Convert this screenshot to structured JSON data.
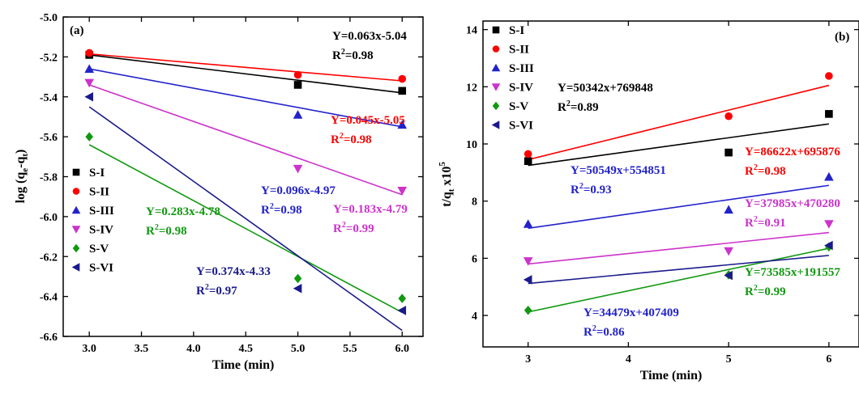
{
  "chart_data": [
    {
      "type": "scatter",
      "panel_label": "(a)",
      "xlabel": "Time (min)",
      "ylabel_main": "log (q",
      "ylabel_sub1": "e",
      "ylabel_mid": "-q",
      "ylabel_sub2": "t",
      "ylabel_end": ")",
      "xlim": [
        2.75,
        6.2
      ],
      "ylim": [
        -6.6,
        -5.0
      ],
      "x_ticks": [
        3.0,
        3.5,
        4.0,
        4.5,
        5.0,
        5.5,
        6.0
      ],
      "x_tick_labels": [
        "3.0",
        "3.5",
        "4.0",
        "4.5",
        "5.0",
        "5.5",
        "6.0"
      ],
      "y_ticks": [
        -6.6,
        -6.4,
        -6.2,
        -6.0,
        -5.8,
        -5.6,
        -5.4,
        -5.2,
        -5.0
      ],
      "y_tick_labels": [
        "-6.6",
        "-6.4",
        "-6.2",
        "-6.0",
        "-5.8",
        "-5.6",
        "-5.4",
        "-5.2",
        "-5.0"
      ],
      "legend": "lower-left",
      "series": [
        {
          "name": "S-I",
          "color": "#000000",
          "marker": "square",
          "x": [
            3,
            5,
            6
          ],
          "y": [
            -5.19,
            -5.34,
            -5.37
          ],
          "fit": [
            -5.19,
            -5.38
          ]
        },
        {
          "name": "S-II",
          "color": "#ff0000",
          "marker": "circle",
          "x": [
            3,
            5,
            6
          ],
          "y": [
            -5.18,
            -5.29,
            -5.31
          ],
          "fit": [
            -5.185,
            -5.32
          ]
        },
        {
          "name": "S-III",
          "color": "#2222cc",
          "marker": "triangle-up",
          "x": [
            3,
            5,
            6
          ],
          "y": [
            -5.26,
            -5.49,
            -5.54
          ],
          "fit": [
            -5.26,
            -5.55
          ]
        },
        {
          "name": "S-IV",
          "color": "#cc33cc",
          "marker": "triangle-down",
          "x": [
            3,
            5,
            6
          ],
          "y": [
            -5.33,
            -5.76,
            -5.87
          ],
          "fit": [
            -5.34,
            -5.89
          ]
        },
        {
          "name": "S-V",
          "color": "#119911",
          "marker": "diamond",
          "x": [
            3,
            5,
            6
          ],
          "y": [
            -5.6,
            -6.31,
            -6.41
          ],
          "fit": [
            -5.64,
            -6.48
          ]
        },
        {
          "name": "S-VI",
          "color": "#1a1a8c",
          "marker": "triangle-left",
          "x": [
            3,
            5,
            6
          ],
          "y": [
            -5.4,
            -6.36,
            -6.47
          ],
          "fit": [
            -5.45,
            -6.57
          ]
        }
      ],
      "annotations": [
        {
          "eq": "Y=0.063x-5.04",
          "r2": "=0.98",
          "color": "#000000"
        },
        {
          "eq": "Y=0.045x-5.05",
          "r2": "=0.98",
          "color": "#ff0000"
        },
        {
          "eq": "Y=0.096x-4.97",
          "r2": "=0.98",
          "color": "#2222cc"
        },
        {
          "eq": "Y=0.183x-4.79",
          "r2": "=0.99",
          "color": "#cc33cc"
        },
        {
          "eq": "Y=0.283x-4.78",
          "r2": "=0.98",
          "color": "#119911"
        },
        {
          "eq": "Y=0.374x-4.33",
          "r2": "=0.97",
          "color": "#1a1a8c"
        }
      ]
    },
    {
      "type": "scatter",
      "panel_label": "(b)",
      "xlabel": "Time (min)",
      "ylabel_main": "t/q",
      "ylabel_sub": "t",
      "ylabel_end": " x10",
      "ylabel_sup": "5",
      "xlim": [
        2.55,
        6.3
      ],
      "ylim": [
        2.9,
        14.3
      ],
      "x_ticks": [
        3,
        4,
        5,
        6
      ],
      "x_tick_labels": [
        "3",
        "4",
        "5",
        "6"
      ],
      "y_ticks": [
        4,
        6,
        8,
        10,
        12,
        14
      ],
      "y_tick_labels": [
        "4",
        "6",
        "8",
        "10",
        "12",
        "14"
      ],
      "legend": "top-left",
      "series": [
        {
          "name": "S-I",
          "color": "#000000",
          "marker": "square",
          "x": [
            3,
            5,
            6
          ],
          "y": [
            9.4,
            9.7,
            11.05
          ],
          "fit": [
            9.25,
            10.7
          ]
        },
        {
          "name": "S-II",
          "color": "#ff0000",
          "marker": "circle",
          "x": [
            3,
            5,
            6
          ],
          "y": [
            9.65,
            10.97,
            12.38
          ],
          "fit": [
            9.45,
            12.05
          ]
        },
        {
          "name": "S-III",
          "color": "#2222cc",
          "marker": "triangle-up",
          "x": [
            3,
            5,
            6
          ],
          "y": [
            7.2,
            7.7,
            8.85
          ],
          "fit": [
            7.05,
            8.55
          ]
        },
        {
          "name": "S-IV",
          "color": "#cc33cc",
          "marker": "triangle-down",
          "x": [
            3,
            5,
            6
          ],
          "y": [
            5.9,
            6.25,
            7.2
          ],
          "fit": [
            5.8,
            6.9
          ]
        },
        {
          "name": "S-V",
          "color": "#119911",
          "marker": "diamond",
          "x": [
            3,
            5,
            6
          ],
          "y": [
            4.18,
            5.42,
            6.4
          ],
          "fit": [
            4.12,
            6.35
          ]
        },
        {
          "name": "S-VI",
          "color": "#1a1a8c",
          "marker": "triangle-left",
          "x": [
            3,
            5,
            6
          ],
          "y": [
            5.25,
            5.4,
            6.45
          ],
          "fit": [
            5.12,
            6.1
          ]
        }
      ],
      "annotations": [
        {
          "eq": "Y=50342x+769848",
          "r2": "=0.89",
          "color": "#000000"
        },
        {
          "eq": "Y=86622x+695876",
          "r2": "=0.98",
          "color": "#ff0000"
        },
        {
          "eq": "Y=50549x+554851",
          "r2": "=0.93",
          "color": "#2222cc"
        },
        {
          "eq": "Y=37985x+470280",
          "r2": "=0.91",
          "color": "#cc33cc"
        },
        {
          "eq": "Y=73585x+191557",
          "r2": "=0.99",
          "color": "#119911"
        },
        {
          "eq": "Y=34479x+407409",
          "r2": "=0.86",
          "color": "#2222cc"
        }
      ]
    }
  ]
}
